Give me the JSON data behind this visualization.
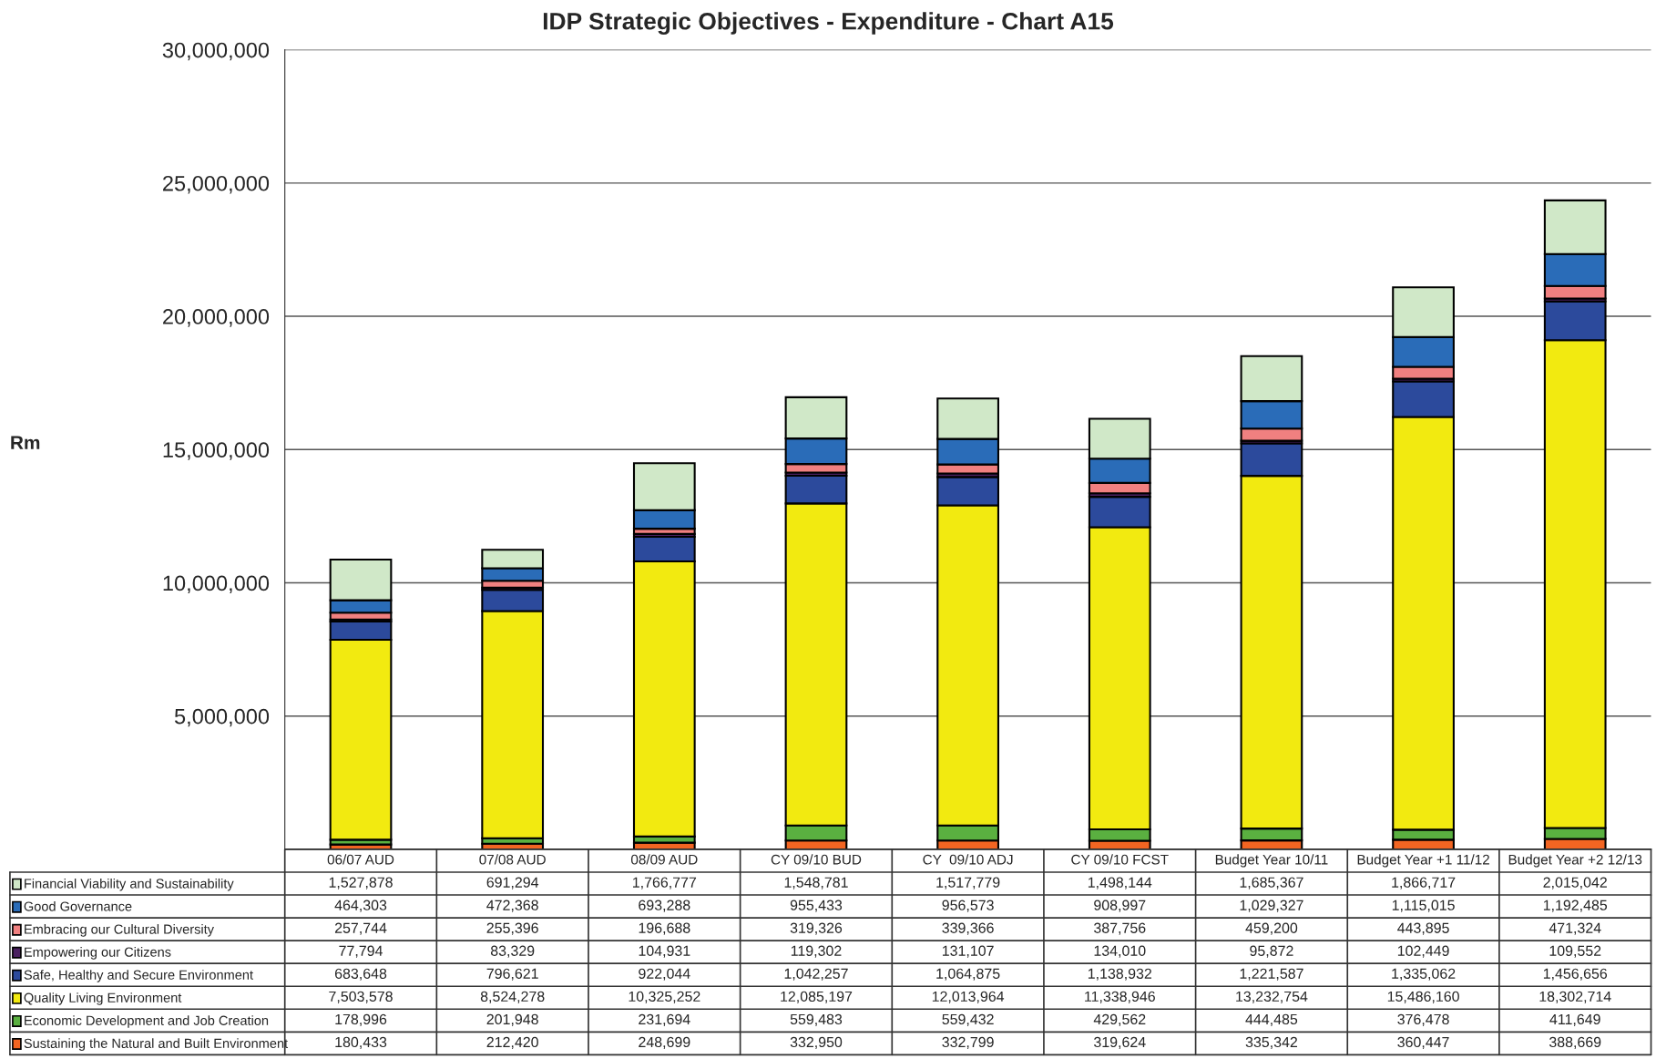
{
  "chart_data": {
    "type": "bar",
    "title": "IDP Strategic Objectives - Expenditure - Chart A15",
    "annotations": [
      "Rm"
    ],
    "stacked": true,
    "legend": "bottom left",
    "grid": "y",
    "categories": [
      "06/07 AUD",
      "07/08 AUD",
      "08/09 AUD",
      "CY 09/10 BUD",
      "CY  09/10 ADJ",
      "CY 09/10 FCST",
      "Budget Year 10/11",
      "Budget Year +1 11/12",
      "Budget Year +2 12/13"
    ],
    "ylim": [
      0,
      30000000
    ],
    "yticks": [
      {
        "value": 0,
        "label": null
      },
      {
        "value": 5000000,
        "label": "5,000,000"
      },
      {
        "value": 10000000,
        "label": "10,000,000"
      },
      {
        "value": 15000000,
        "label": "15,000,000"
      },
      {
        "value": 20000000,
        "label": "20,000,000"
      },
      {
        "value": 25000000,
        "label": "25,000,000"
      },
      {
        "value": 30000000,
        "label": "30,000,000"
      }
    ],
    "series": [
      {
        "name": "Sustaining the Natural and Built Environment",
        "color": "#f26522",
        "values": [
          180433,
          212420,
          248699,
          332950,
          332799,
          319624,
          335342,
          360447,
          388669
        ],
        "value_labels": [
          "180,433",
          "212,420",
          "248,699",
          "332,950",
          "332,799",
          "319,624",
          "335,342",
          "360,447",
          "388,669"
        ]
      },
      {
        "name": "Economic Development and Job Creation",
        "color": "#5ab040",
        "values": [
          178996,
          201948,
          231694,
          559483,
          559432,
          429562,
          444485,
          376478,
          411649
        ],
        "value_labels": [
          "178,996",
          "201,948",
          "231,694",
          "559,483",
          "559,432",
          "429,562",
          "444,485",
          "376,478",
          "411,649"
        ]
      },
      {
        "name": "Quality Living Environment",
        "color": "#f2ea10",
        "values": [
          7503578,
          8524278,
          10325252,
          12085197,
          12013964,
          11338946,
          13232754,
          15486160,
          18302714
        ],
        "value_labels": [
          "7,503,578",
          "8,524,278",
          "10,325,252",
          "12,085,197",
          "12,013,964",
          "11,338,946",
          "13,232,754",
          "15,486,160",
          "18,302,714"
        ]
      },
      {
        "name": "Safe, Healthy and Secure Environment",
        "color": "#2c4a9c",
        "values": [
          683648,
          796621,
          922044,
          1042257,
          1064875,
          1138932,
          1221587,
          1335062,
          1456656
        ],
        "value_labels": [
          "683,648",
          "796,621",
          "922,044",
          "1,042,257",
          "1,064,875",
          "1,138,932",
          "1,221,587",
          "1,335,062",
          "1,456,656"
        ]
      },
      {
        "name": "Empowering our Citizens",
        "color": "#4a2060",
        "values": [
          77794,
          83329,
          104931,
          119302,
          131107,
          134010,
          95872,
          102449,
          109552
        ],
        "value_labels": [
          "77,794",
          "83,329",
          "104,931",
          "119,302",
          "131,107",
          "134,010",
          "95,872",
          "102,449",
          "109,552"
        ]
      },
      {
        "name": "Embracing our Cultural Diversity",
        "color": "#f08080",
        "values": [
          257744,
          255396,
          196688,
          319326,
          339366,
          387756,
          459200,
          443895,
          471324
        ],
        "value_labels": [
          "257,744",
          "255,396",
          "196,688",
          "319,326",
          "339,366",
          "387,756",
          "459,200",
          "443,895",
          "471,324"
        ]
      },
      {
        "name": "Good Governance",
        "color": "#2a6cb8",
        "values": [
          464303,
          472368,
          693288,
          955433,
          956573,
          908997,
          1029327,
          1115015,
          1192485
        ],
        "value_labels": [
          "464,303",
          "472,368",
          "693,288",
          "955,433",
          "956,573",
          "908,997",
          "1,029,327",
          "1,115,015",
          "1,192,485"
        ]
      },
      {
        "name": "Financial Viability and Sustainability",
        "color": "#d0e8c8",
        "values": [
          1527878,
          691294,
          1766777,
          1548781,
          1517779,
          1498144,
          1685367,
          1866717,
          2015042
        ],
        "value_labels": [
          "1,527,878",
          "691,294",
          "1,766,777",
          "1,548,781",
          "1,517,779",
          "1,498,144",
          "1,685,367",
          "1,866,717",
          "2,015,042"
        ]
      }
    ]
  }
}
